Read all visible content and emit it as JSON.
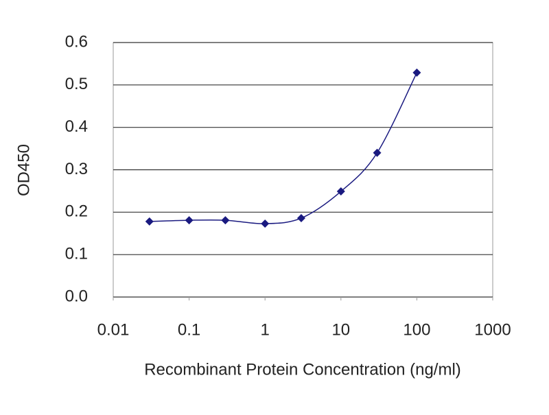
{
  "chart_data": {
    "type": "line",
    "x_label": "Recombinant Protein Concentration (ng/ml)",
    "y_label": "OD450",
    "x": [
      0.03,
      0.1,
      0.3,
      1,
      3,
      10,
      30,
      100
    ],
    "values": [
      0.178,
      0.181,
      0.181,
      0.173,
      0.186,
      0.249,
      0.34,
      0.529
    ],
    "color": "#1a1a80",
    "xlog": true,
    "xlim": [
      0.01,
      1000
    ],
    "xticks": [
      0.01,
      0.1,
      1,
      10,
      100,
      1000
    ],
    "ylim": [
      0,
      0.6
    ],
    "yticks": [
      {
        "value": 0,
        "label": "0.0"
      },
      0.1,
      0.2,
      0.3,
      0.4,
      0.5,
      0.6
    ],
    "grid": true
  }
}
